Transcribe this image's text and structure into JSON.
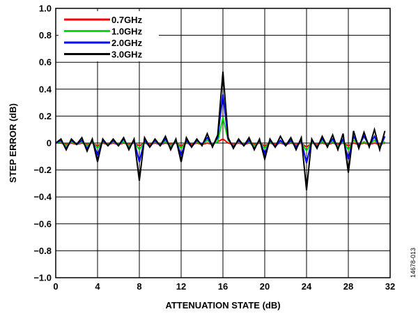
{
  "chart_data": {
    "type": "line",
    "title": "",
    "xlabel": "ATTENUATION STATE (dB)",
    "ylabel": "STEP ERROR (dB)",
    "xlim": [
      0,
      32
    ],
    "ylim": [
      -1.0,
      1.0
    ],
    "x_ticks": [
      0,
      4,
      8,
      12,
      16,
      20,
      24,
      28,
      32
    ],
    "x_tick_labels": [
      "0",
      "4",
      "8",
      "12",
      "16",
      "20",
      "24",
      "28",
      "32"
    ],
    "y_ticks": [
      -1.0,
      -0.8,
      -0.6,
      -0.4,
      -0.2,
      0,
      0.2,
      0.4,
      0.6,
      0.8,
      1.0
    ],
    "y_tick_labels": [
      "−1.0",
      "−0.8",
      "−0.6",
      "−0.4",
      "−0.2",
      "0",
      "0.2",
      "0.4",
      "0.6",
      "0.8",
      "1.0"
    ],
    "grid": true,
    "legend_position": "top-left",
    "x": [
      0,
      0.5,
      1,
      1.5,
      2,
      2.5,
      3,
      3.5,
      4,
      4.5,
      5,
      5.5,
      6,
      6.5,
      7,
      7.5,
      8,
      8.5,
      9,
      9.5,
      10,
      10.5,
      11,
      11.5,
      12,
      12.5,
      13,
      13.5,
      14,
      14.5,
      15,
      15.5,
      16,
      16.5,
      17,
      17.5,
      18,
      18.5,
      19,
      19.5,
      20,
      20.5,
      21,
      21.5,
      22,
      22.5,
      23,
      23.5,
      24,
      24.5,
      25,
      25.5,
      26,
      26.5,
      27,
      27.5,
      28,
      28.5,
      29,
      29.5,
      30,
      30.5,
      31,
      31.5
    ],
    "series": [
      {
        "name": "0.7GHz",
        "color": "#ff0000",
        "values": [
          0,
          0,
          -0.01,
          0,
          -0.01,
          0,
          -0.01,
          0,
          -0.02,
          0,
          -0.01,
          0,
          -0.01,
          0,
          -0.01,
          0,
          -0.02,
          0,
          -0.01,
          0,
          -0.01,
          0,
          -0.01,
          0,
          -0.02,
          0,
          -0.01,
          0,
          -0.01,
          0,
          -0.01,
          0.01,
          0.03,
          0,
          -0.01,
          0,
          -0.01,
          0,
          -0.01,
          0,
          -0.02,
          0,
          -0.01,
          0,
          -0.01,
          0,
          -0.01,
          0,
          -0.03,
          0,
          -0.01,
          0,
          -0.01,
          0,
          -0.01,
          0,
          -0.02,
          0,
          -0.01,
          0,
          -0.01,
          0,
          -0.01,
          0
        ]
      },
      {
        "name": "1.0GHz",
        "color": "#00dd00",
        "values": [
          0,
          0.01,
          -0.02,
          0.01,
          -0.01,
          0.01,
          -0.02,
          0.01,
          -0.04,
          0.01,
          -0.01,
          0.01,
          -0.01,
          0.01,
          -0.02,
          0.01,
          -0.05,
          0.01,
          -0.02,
          0.01,
          -0.01,
          0.01,
          -0.02,
          0.01,
          -0.04,
          0.01,
          -0.02,
          0.01,
          -0.01,
          0.02,
          -0.01,
          0.01,
          0.19,
          0.02,
          -0.02,
          0.01,
          -0.01,
          0.01,
          -0.02,
          0.01,
          -0.04,
          0.01,
          -0.02,
          0.01,
          -0.01,
          0.01,
          -0.02,
          0.01,
          -0.06,
          0.01,
          -0.02,
          0.01,
          -0.01,
          0.01,
          -0.02,
          0.01,
          -0.05,
          0.02,
          -0.01,
          0.01,
          -0.01,
          0.02,
          -0.02,
          0.01
        ]
      },
      {
        "name": "2.0GHz",
        "color": "#0000ff",
        "values": [
          0,
          0.02,
          -0.04,
          0.02,
          -0.01,
          0.02,
          -0.04,
          0.02,
          -0.09,
          0.02,
          -0.02,
          0.02,
          -0.02,
          0.03,
          -0.04,
          0.02,
          -0.14,
          0.02,
          -0.03,
          0.02,
          -0.02,
          0.03,
          -0.04,
          0.02,
          -0.09,
          0.02,
          -0.03,
          0.02,
          -0.01,
          0.04,
          -0.02,
          0.04,
          0.36,
          0.03,
          -0.03,
          0.02,
          -0.02,
          0.02,
          -0.04,
          0.02,
          -0.08,
          0.02,
          -0.03,
          0.02,
          -0.02,
          0.02,
          -0.03,
          0.02,
          -0.15,
          0.02,
          -0.03,
          0.03,
          -0.02,
          0.03,
          -0.04,
          0.03,
          -0.12,
          0.05,
          -0.02,
          0.05,
          -0.02,
          0.05,
          -0.04,
          0.05
        ]
      },
      {
        "name": "3.0GHz",
        "color": "#000000",
        "values": [
          0,
          0.03,
          -0.05,
          0.03,
          -0.01,
          0.04,
          -0.06,
          0.03,
          -0.14,
          0.03,
          -0.02,
          0.03,
          -0.02,
          0.04,
          -0.05,
          0.03,
          -0.28,
          0.04,
          -0.03,
          0.03,
          -0.02,
          0.05,
          -0.05,
          0.03,
          -0.14,
          0.04,
          -0.03,
          0.03,
          -0.02,
          0.07,
          -0.03,
          0.06,
          0.53,
          0.04,
          -0.04,
          0.03,
          -0.02,
          0.04,
          -0.05,
          0.03,
          -0.12,
          0.03,
          -0.03,
          0.05,
          -0.02,
          0.04,
          -0.05,
          0.04,
          -0.35,
          0.03,
          -0.04,
          0.05,
          -0.03,
          0.06,
          -0.05,
          0.07,
          -0.22,
          0.09,
          -0.04,
          0.08,
          -0.03,
          0.1,
          -0.05,
          0.09
        ]
      }
    ]
  },
  "figure_id": "14678-013"
}
